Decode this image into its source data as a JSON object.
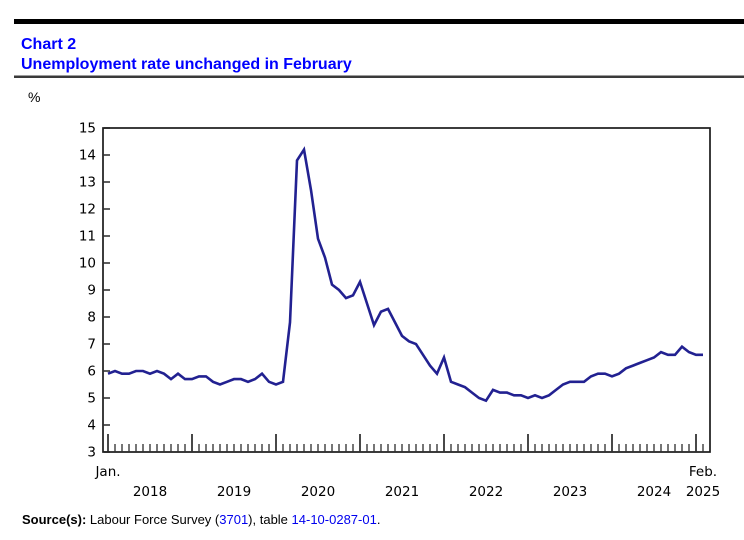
{
  "header": {
    "chart_label": "Chart 2",
    "title": "Unemployment rate unchanged in February"
  },
  "chart_data": {
    "type": "line",
    "title": "Unemployment rate unchanged in February",
    "ylabel": "%",
    "unit_label": "%",
    "ylim": [
      3,
      15
    ],
    "y_ticks": [
      3,
      4,
      5,
      6,
      7,
      8,
      9,
      10,
      11,
      12,
      13,
      14,
      15
    ],
    "grid": false,
    "legend_position": "none",
    "x_start": "2018-01",
    "x_end": "2025-02",
    "x_axis": {
      "first_tick_label": "Jan.",
      "last_tick_label": "Feb.",
      "year_labels": [
        "2018",
        "2019",
        "2020",
        "2021",
        "2022",
        "2023",
        "2024",
        "2025"
      ]
    },
    "series": [
      {
        "name": "Unemployment rate",
        "frequency": "monthly",
        "values": [
          5.9,
          6.0,
          5.9,
          5.9,
          6.0,
          6.0,
          5.9,
          6.0,
          5.9,
          5.7,
          5.9,
          5.7,
          5.7,
          5.8,
          5.8,
          5.6,
          5.5,
          5.6,
          5.7,
          5.7,
          5.6,
          5.7,
          5.9,
          5.6,
          5.5,
          5.6,
          7.8,
          13.8,
          14.2,
          12.7,
          10.9,
          10.2,
          9.2,
          9.0,
          8.7,
          8.8,
          9.3,
          8.5,
          7.7,
          8.2,
          8.3,
          7.8,
          7.3,
          7.1,
          7.0,
          6.6,
          6.2,
          5.9,
          6.5,
          5.6,
          5.5,
          5.4,
          5.2,
          5.0,
          4.9,
          5.3,
          5.2,
          5.2,
          5.1,
          5.1,
          5.0,
          5.1,
          5.0,
          5.1,
          5.3,
          5.5,
          5.6,
          5.6,
          5.6,
          5.8,
          5.9,
          5.9,
          5.8,
          5.9,
          6.1,
          6.2,
          6.3,
          6.4,
          6.5,
          6.7,
          6.6,
          6.6,
          6.9,
          6.7,
          6.6,
          6.6
        ]
      }
    ],
    "line_color": "#222191"
  },
  "source": {
    "label": "Source(s):",
    "pre": " Labour Force Survey (",
    "survey_link": "3701",
    "mid": "), table ",
    "table_link": "14-10-0287-01",
    "post": "."
  },
  "colors": {
    "title_blue": "#0000ff",
    "link_blue": "#0000ee",
    "line_navy": "#222191",
    "axis_black": "#000000"
  }
}
